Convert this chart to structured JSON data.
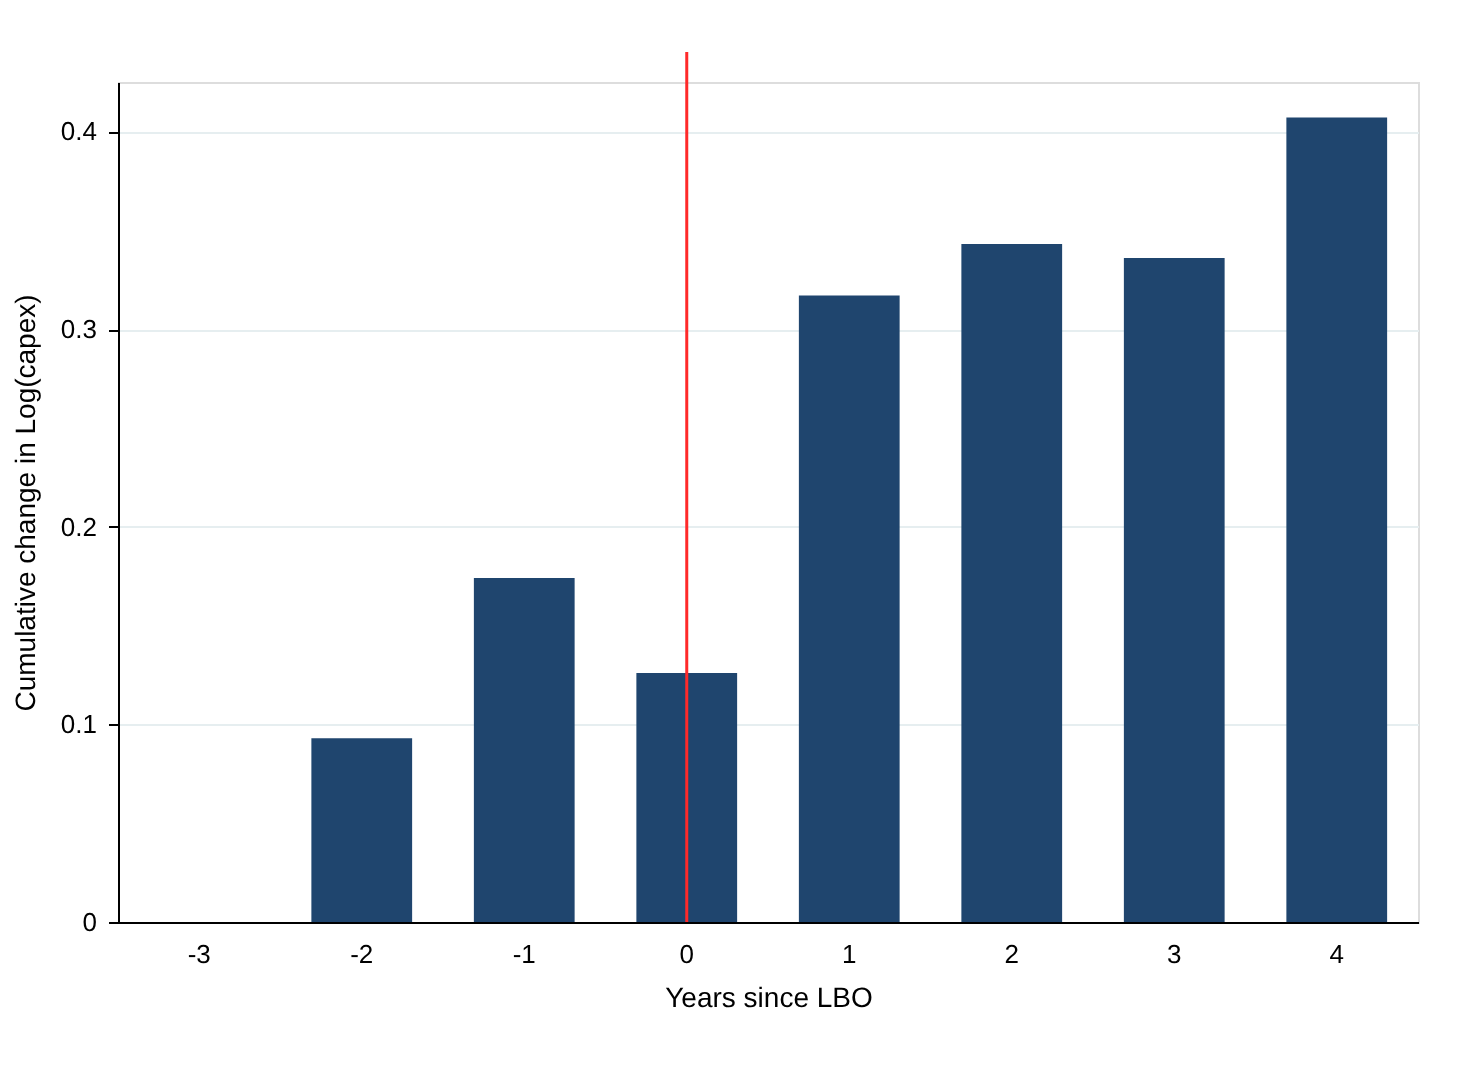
{
  "chart_data": {
    "type": "bar",
    "xlabel": "Years since LBO",
    "ylabel": "Cumulative change in Log(capex)",
    "categories": [
      "-3",
      "-2",
      "-1",
      "0",
      "1",
      "2",
      "3",
      "4"
    ],
    "values": [
      0,
      0.093,
      0.174,
      0.126,
      0.317,
      0.343,
      0.336,
      0.407
    ],
    "color": "#1f456e",
    "ylim": [
      0,
      0.425
    ],
    "yticks": [
      0,
      0.1,
      0.2,
      0.3,
      0.4
    ],
    "grid": "y",
    "ref_lines": [
      {
        "axis": "x",
        "value": "0",
        "color": "#ff2a2a"
      }
    ]
  }
}
